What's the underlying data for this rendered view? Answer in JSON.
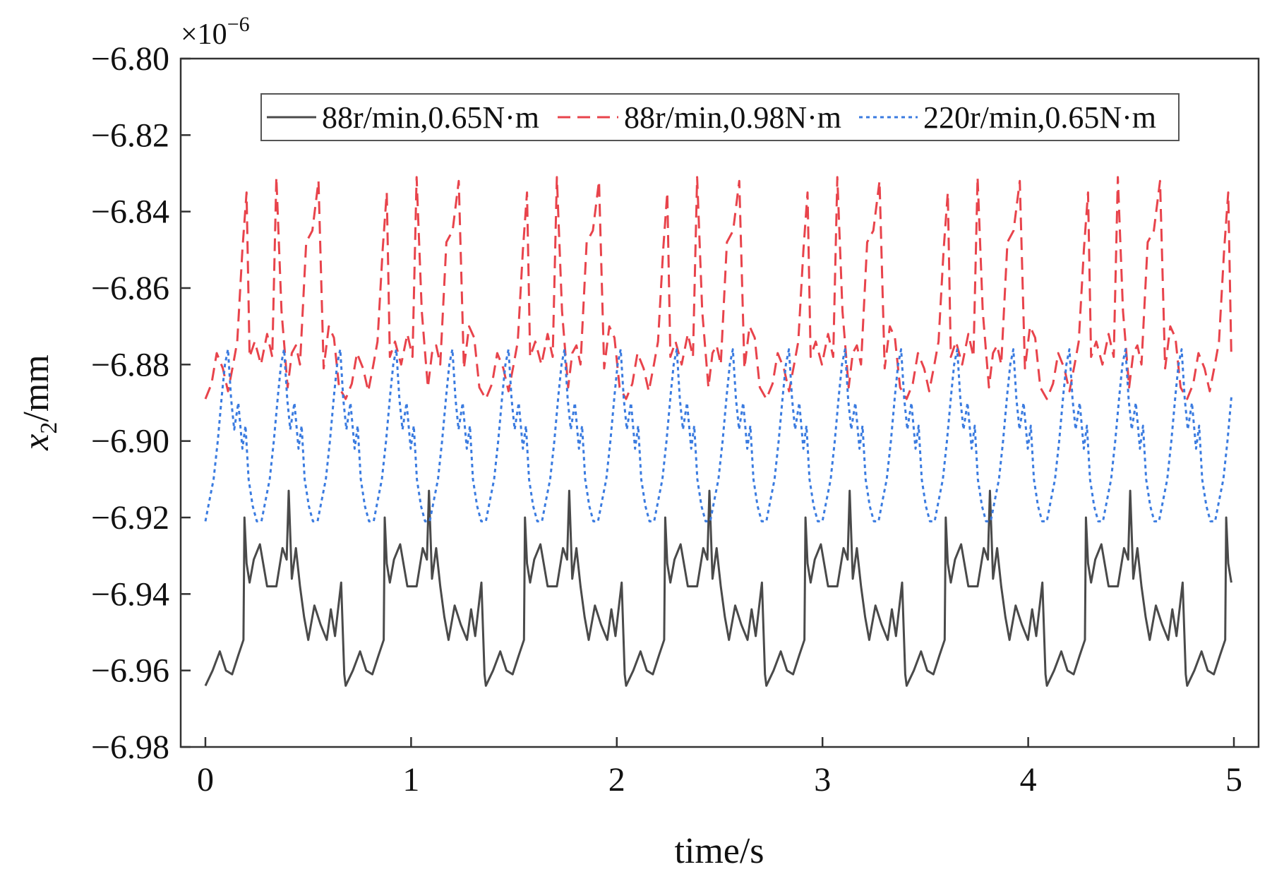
{
  "chart_data": {
    "type": "line",
    "xlabel": "time/s",
    "ylabel_var": "x",
    "ylabel_sub": "2",
    "ylabel_unit": "/mm",
    "y_multiplier_base": "×10",
    "y_multiplier_exp": "−6",
    "xlim": [
      -0.12,
      5.12
    ],
    "ylim": [
      -6.98,
      -6.8
    ],
    "xticks": [
      0,
      1,
      2,
      3,
      4,
      5
    ],
    "xtick_labels": [
      "0",
      "1",
      "2",
      "3",
      "4",
      "5"
    ],
    "yticks": [
      -6.8,
      -6.82,
      -6.84,
      -6.86,
      -6.88,
      -6.9,
      -6.92,
      -6.94,
      -6.96,
      -6.98
    ],
    "ytick_labels": [
      "−6.80",
      "−6.82",
      "−6.84",
      "−6.86",
      "−6.88",
      "−6.90",
      "−6.92",
      "−6.94",
      "−6.96",
      "−6.98"
    ],
    "grid": false,
    "legend_position": "top",
    "series": [
      {
        "name": "88r/min,0.65N·m",
        "color": "#4a4a4a",
        "style": "solid",
        "period": 0.6818,
        "cycle": [
          [
            0.0,
            -6.964
          ],
          [
            0.035,
            -6.96
          ],
          [
            0.07,
            -6.955
          ],
          [
            0.1,
            -6.96
          ],
          [
            0.13,
            -6.961
          ],
          [
            0.16,
            -6.956
          ],
          [
            0.185,
            -6.952
          ],
          [
            0.19,
            -6.92
          ],
          [
            0.2,
            -6.932
          ],
          [
            0.215,
            -6.937
          ],
          [
            0.235,
            -6.931
          ],
          [
            0.265,
            -6.927
          ],
          [
            0.3,
            -6.938
          ],
          [
            0.345,
            -6.938
          ],
          [
            0.375,
            -6.928
          ],
          [
            0.395,
            -6.931
          ],
          [
            0.405,
            -6.913
          ],
          [
            0.42,
            -6.936
          ],
          [
            0.44,
            -6.928
          ],
          [
            0.46,
            -6.938
          ],
          [
            0.48,
            -6.946
          ],
          [
            0.5,
            -6.952
          ],
          [
            0.53,
            -6.943
          ],
          [
            0.56,
            -6.948
          ],
          [
            0.59,
            -6.952
          ],
          [
            0.61,
            -6.944
          ],
          [
            0.63,
            -6.951
          ],
          [
            0.66,
            -6.937
          ],
          [
            0.675,
            -6.961
          ],
          [
            0.6818,
            -6.964
          ]
        ]
      },
      {
        "name": "88r/min,0.98N·m",
        "color": "#e8434b",
        "style": "dashed",
        "period": 0.6818,
        "cycle": [
          [
            0.0,
            -6.889
          ],
          [
            0.03,
            -6.885
          ],
          [
            0.055,
            -6.877
          ],
          [
            0.085,
            -6.881
          ],
          [
            0.11,
            -6.887
          ],
          [
            0.135,
            -6.88
          ],
          [
            0.155,
            -6.874
          ],
          [
            0.18,
            -6.85
          ],
          [
            0.2,
            -6.835
          ],
          [
            0.215,
            -6.878
          ],
          [
            0.24,
            -6.874
          ],
          [
            0.27,
            -6.88
          ],
          [
            0.3,
            -6.872
          ],
          [
            0.325,
            -6.878
          ],
          [
            0.345,
            -6.831
          ],
          [
            0.37,
            -6.866
          ],
          [
            0.385,
            -6.876
          ],
          [
            0.4,
            -6.886
          ],
          [
            0.42,
            -6.877
          ],
          [
            0.44,
            -6.875
          ],
          [
            0.46,
            -6.88
          ],
          [
            0.49,
            -6.848
          ],
          [
            0.52,
            -6.845
          ],
          [
            0.55,
            -6.832
          ],
          [
            0.575,
            -6.881
          ],
          [
            0.6,
            -6.87
          ],
          [
            0.625,
            -6.873
          ],
          [
            0.65,
            -6.886
          ],
          [
            0.6818,
            -6.889
          ]
        ]
      },
      {
        "name": "220r/min,0.65N·m",
        "color": "#3a7be0",
        "style": "dotted",
        "period": 0.2727,
        "cycle": [
          [
            0.0,
            -6.921
          ],
          [
            0.018,
            -6.916
          ],
          [
            0.04,
            -6.91
          ],
          [
            0.06,
            -6.9
          ],
          [
            0.08,
            -6.888
          ],
          [
            0.095,
            -6.88
          ],
          [
            0.11,
            -6.876
          ],
          [
            0.125,
            -6.889
          ],
          [
            0.14,
            -6.897
          ],
          [
            0.16,
            -6.89
          ],
          [
            0.18,
            -6.902
          ],
          [
            0.195,
            -6.896
          ],
          [
            0.21,
            -6.91
          ],
          [
            0.23,
            -6.917
          ],
          [
            0.25,
            -6.921
          ],
          [
            0.2727,
            -6.921
          ]
        ]
      }
    ]
  }
}
